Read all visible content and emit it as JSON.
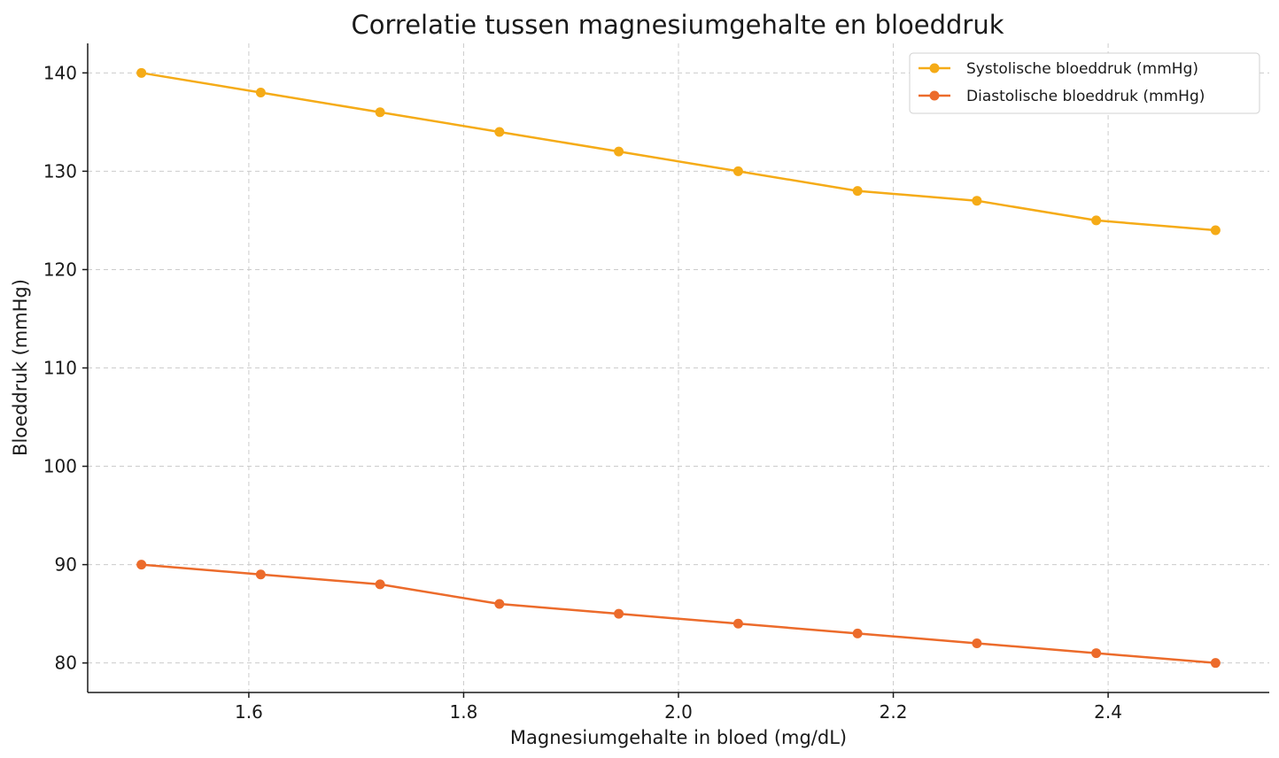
{
  "chart_data": {
    "type": "line",
    "title": "Correlatie tussen magnesiumgehalte en bloeddruk",
    "xlabel": "Magnesiumgehalte in bloed (mg/dL)",
    "ylabel": "Bloeddruk (mmHg)",
    "x": [
      1.5,
      1.6111,
      1.7222,
      1.8333,
      1.9444,
      2.0556,
      2.1667,
      2.2778,
      2.3889,
      2.5
    ],
    "xlim": [
      1.45,
      2.55
    ],
    "ylim": [
      77,
      143
    ],
    "xticks": [
      1.6,
      1.8,
      2.0,
      2.2,
      2.4
    ],
    "xtick_labels": [
      "1.6",
      "1.8",
      "2.0",
      "2.2",
      "2.4"
    ],
    "yticks": [
      80,
      90,
      100,
      110,
      120,
      130,
      140
    ],
    "ytick_labels": [
      "80",
      "90",
      "100",
      "110",
      "120",
      "130",
      "140"
    ],
    "grid": true,
    "legend_position": "top-right",
    "series": [
      {
        "name": "Systolische bloeddruk (mmHg)",
        "color": "#f5ab17",
        "values": [
          140,
          138,
          136,
          134,
          132,
          130,
          128,
          127,
          125,
          124
        ]
      },
      {
        "name": "Diastolische bloeddruk (mmHg)",
        "color": "#ec6b2b",
        "values": [
          90,
          89,
          88,
          86,
          85,
          84,
          83,
          82,
          81,
          80
        ]
      }
    ]
  }
}
